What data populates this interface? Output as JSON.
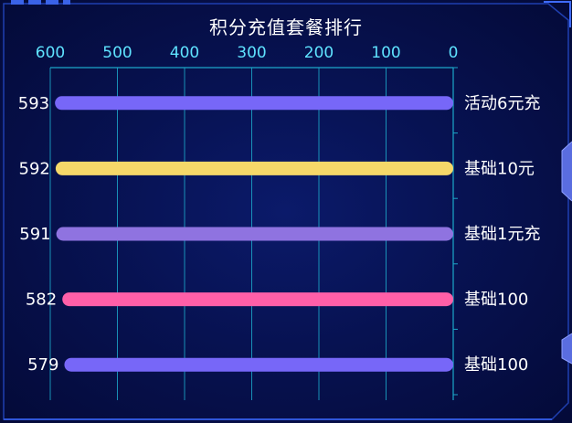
{
  "chart_data": {
    "type": "bar",
    "orientation": "horizontal",
    "title": "积分充值套餐排行",
    "x_axis": {
      "inverse": true,
      "position": "top",
      "xlim": [
        0,
        600
      ],
      "ticks": [
        0,
        100,
        200,
        300,
        400,
        500,
        600
      ]
    },
    "y_axis": {
      "position": "right"
    },
    "categories": [
      "活动6元充",
      "基础10元",
      "基础1元充",
      "基础100",
      "基础100"
    ],
    "values": [
      593,
      592,
      591,
      582,
      579
    ],
    "colors": [
      "#7767f8",
      "#f6d869",
      "#8f73e0",
      "#ff5fa8",
      "#7767f8"
    ],
    "grid": true,
    "legend": "none"
  }
}
